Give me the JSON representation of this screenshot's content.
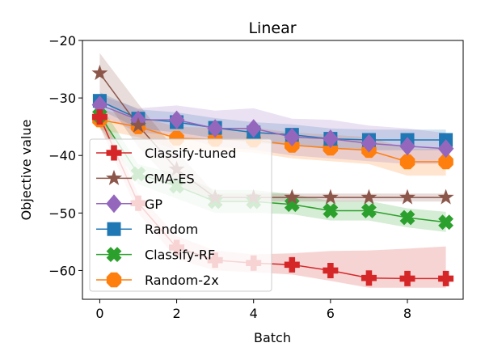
{
  "chart_data": {
    "type": "line",
    "title": "Linear",
    "xlabel": "Batch",
    "ylabel": "Objective value",
    "xlim": [
      -0.45,
      9.45
    ],
    "ylim": [
      -65,
      -20
    ],
    "xticks": [
      0,
      2,
      4,
      6,
      8
    ],
    "yticks": [
      -60,
      -50,
      -40,
      -30,
      -20
    ],
    "ytick_labels": [
      "−60",
      "−50",
      "−40",
      "−30",
      "−20"
    ],
    "x": [
      0,
      1,
      2,
      3,
      4,
      5,
      6,
      7,
      8,
      9
    ],
    "legend_location": "center-left",
    "series": [
      {
        "name": "Random-2x",
        "color": "#ff7f0e",
        "marker": "octagon",
        "values": [
          -33.8,
          -35.0,
          -37.0,
          -37.2,
          -37.3,
          -38.2,
          -38.7,
          -39.1,
          -41.1,
          -41.1
        ],
        "lower": [
          -35.5,
          -36.8,
          -39.0,
          -39.2,
          -39.5,
          -40.5,
          -41.0,
          -41.5,
          -43.5,
          -43.5
        ],
        "upper": [
          -32.0,
          -33.2,
          -35.0,
          -35.2,
          -35.2,
          -36.0,
          -36.4,
          -36.8,
          -38.8,
          -38.8
        ]
      },
      {
        "name": "Classify-RF",
        "color": "#2ca02c",
        "marker": "x",
        "values": [
          -33.0,
          -43.2,
          -45.3,
          -48.0,
          -48.0,
          -48.5,
          -49.6,
          -49.6,
          -50.8,
          -51.6
        ],
        "lower": [
          -35.0,
          -45.0,
          -47.5,
          -50.0,
          -50.0,
          -50.2,
          -51.3,
          -51.3,
          -52.5,
          -53.3
        ],
        "upper": [
          -31.0,
          -41.5,
          -43.2,
          -46.0,
          -46.0,
          -46.7,
          -47.9,
          -47.9,
          -49.2,
          -49.8
        ]
      },
      {
        "name": "Random",
        "color": "#1f77b4",
        "marker": "square",
        "values": [
          -30.5,
          -33.6,
          -34.2,
          -35.2,
          -36.0,
          -36.4,
          -37.1,
          -37.3,
          -37.3,
          -37.3
        ],
        "lower": [
          -32.0,
          -35.3,
          -36.0,
          -37.0,
          -37.8,
          -38.2,
          -38.9,
          -39.1,
          -39.1,
          -39.1
        ],
        "upper": [
          -29.0,
          -32.0,
          -32.5,
          -33.5,
          -34.2,
          -34.6,
          -35.3,
          -35.5,
          -35.5,
          -35.5
        ]
      },
      {
        "name": "GP",
        "color": "#9467bd",
        "marker": "diamond",
        "values": [
          -31.2,
          -33.8,
          -33.8,
          -35.3,
          -35.3,
          -36.8,
          -37.1,
          -37.9,
          -38.4,
          -38.8
        ],
        "lower": [
          -33.0,
          -36.0,
          -36.5,
          -38.5,
          -39.0,
          -40.0,
          -40.5,
          -41.0,
          -41.5,
          -41.5
        ],
        "upper": [
          -29.5,
          -31.8,
          -31.3,
          -32.2,
          -31.8,
          -33.6,
          -33.8,
          -34.8,
          -35.3,
          -36.1
        ]
      },
      {
        "name": "CMA-ES",
        "color": "#8c564b",
        "marker": "star",
        "values": [
          -25.7,
          -34.8,
          -42.4,
          -47.3,
          -47.3,
          -47.3,
          -47.3,
          -47.3,
          -47.3,
          -47.3
        ],
        "lower": [
          -29.0,
          -38.5,
          -45.5,
          -48.0,
          -48.0,
          -48.0,
          -48.0,
          -48.0,
          -48.0,
          -48.0
        ],
        "upper": [
          -22.2,
          -31.0,
          -39.3,
          -46.6,
          -46.6,
          -46.6,
          -46.6,
          -46.6,
          -46.6,
          -46.6
        ]
      },
      {
        "name": "Classify-tuned",
        "color": "#d62728",
        "marker": "plus",
        "values": [
          -33.3,
          -48.3,
          -56.0,
          -58.2,
          -58.7,
          -59.0,
          -60.0,
          -61.3,
          -61.4,
          -61.4
        ],
        "lower": [
          -35.0,
          -50.0,
          -58.0,
          -60.0,
          -60.3,
          -60.7,
          -61.8,
          -63.0,
          -63.0,
          -63.0
        ],
        "upper": [
          -31.7,
          -46.7,
          -54.0,
          -56.5,
          -57.2,
          -57.0,
          -56.6,
          -56.5,
          -56.2,
          -55.8
        ]
      }
    ],
    "legend_order": [
      "Classify-tuned",
      "CMA-ES",
      "GP",
      "Random",
      "Classify-RF",
      "Random-2x"
    ]
  }
}
